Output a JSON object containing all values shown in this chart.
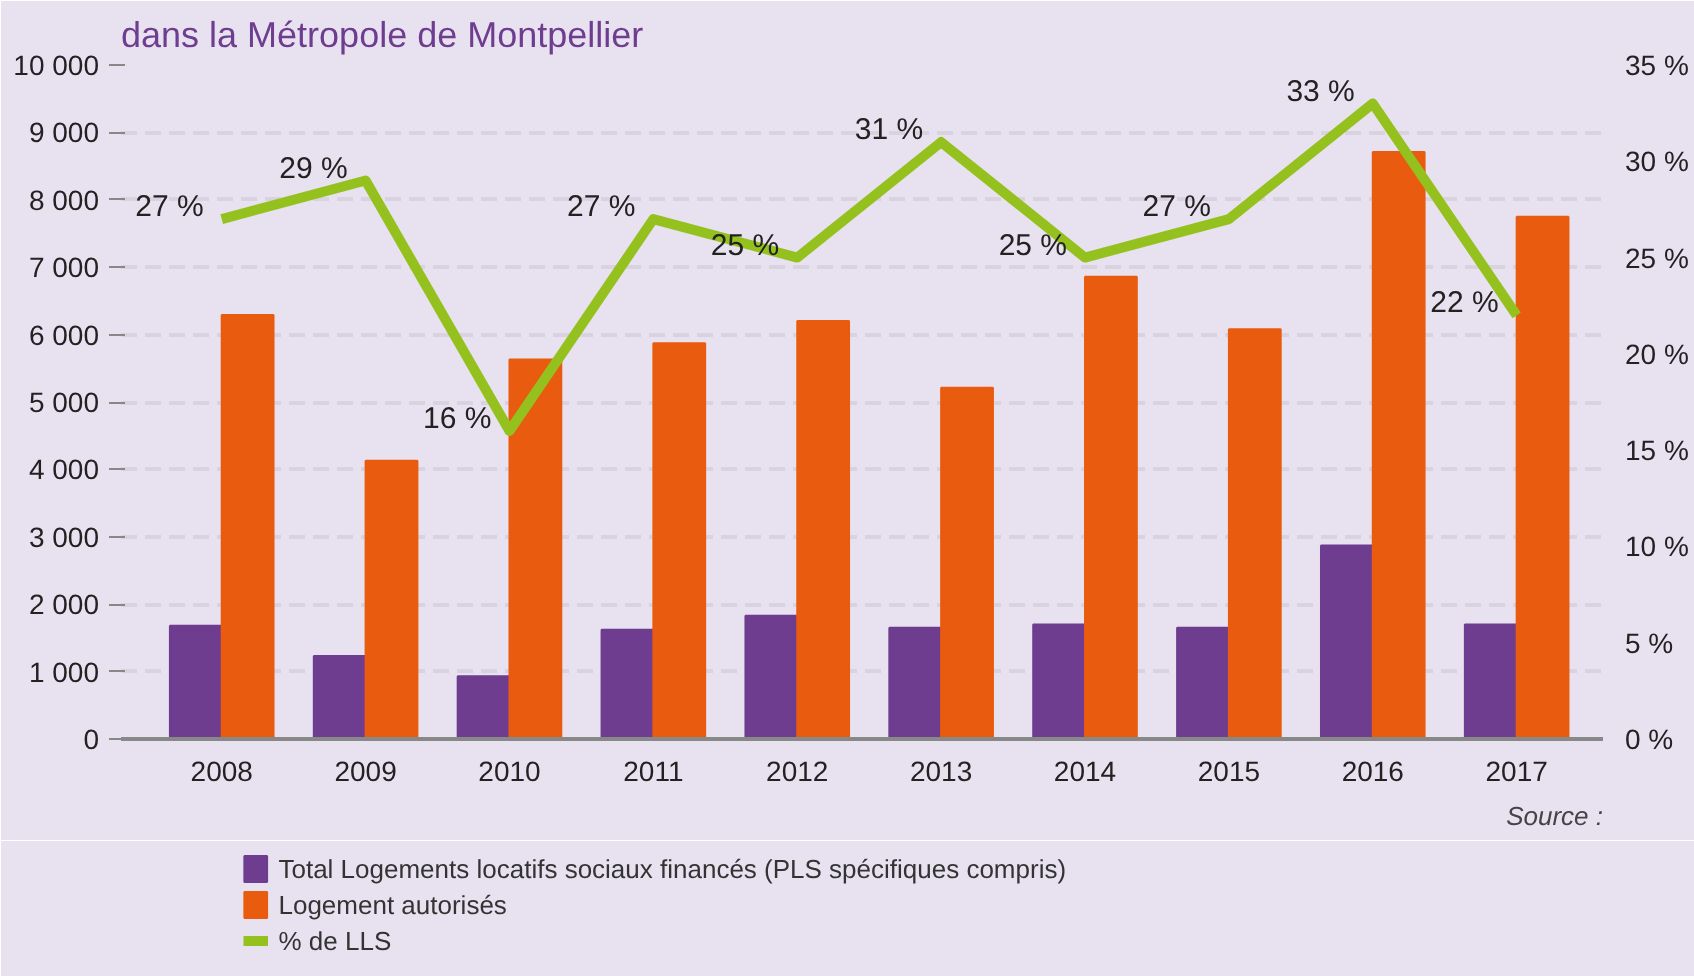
{
  "chart_data": {
    "type": "bar",
    "title": "dans la Métropole de Montpellier",
    "categories": [
      "2008",
      "2009",
      "2010",
      "2011",
      "2012",
      "2013",
      "2014",
      "2015",
      "2016",
      "2017"
    ],
    "series": [
      {
        "name": "Total Logements locatifs sociaux financés (PLS spécifiques compris)",
        "color": "#6e3d8f",
        "values": [
          1680,
          1230,
          930,
          1620,
          1830,
          1650,
          1700,
          1650,
          2870,
          1700
        ]
      },
      {
        "name": "Logement autorisés",
        "color": "#e95b0f",
        "values": [
          6290,
          4130,
          5630,
          5870,
          6200,
          5210,
          6860,
          6080,
          8710,
          7750
        ]
      },
      {
        "name": "% de LLS",
        "type": "line",
        "axis": "y2",
        "color": "#95c11f",
        "values": [
          27,
          29,
          16,
          27,
          25,
          31,
          25,
          27,
          33,
          22
        ],
        "value_labels": [
          "27 %",
          "29 %",
          "16 %",
          "27 %",
          "25 %",
          "31 %",
          "25 %",
          "27 %",
          "33 %",
          "22 %"
        ]
      }
    ],
    "ylim": [
      0,
      10000
    ],
    "yticks": [
      {
        "value": 0,
        "label": "0"
      },
      {
        "value": 1000,
        "label": "1 000"
      },
      {
        "value": 2000,
        "label": "2 000"
      },
      {
        "value": 3000,
        "label": "3 000"
      },
      {
        "value": 4000,
        "label": "4 000"
      },
      {
        "value": 5000,
        "label": "5 000"
      },
      {
        "value": 6000,
        "label": "6 000"
      },
      {
        "value": 7000,
        "label": "7 000"
      },
      {
        "value": 8000,
        "label": "8 000"
      },
      {
        "value": 9000,
        "label": "9 000"
      },
      {
        "value": 10000,
        "label": "10 000"
      }
    ],
    "y2lim": [
      0,
      35
    ],
    "y2ticks": [
      {
        "value": 0,
        "label": "0 %"
      },
      {
        "value": 5,
        "label": "5 %"
      },
      {
        "value": 10,
        "label": "10 %"
      },
      {
        "value": 15,
        "label": "15 %"
      },
      {
        "value": 20,
        "label": "20 %"
      },
      {
        "value": 25,
        "label": "25 %"
      },
      {
        "value": 30,
        "label": "30 %"
      },
      {
        "value": 35,
        "label": "35 %"
      }
    ],
    "grid": "y",
    "legend": "bottom",
    "annotations": [
      "Source :"
    ]
  }
}
